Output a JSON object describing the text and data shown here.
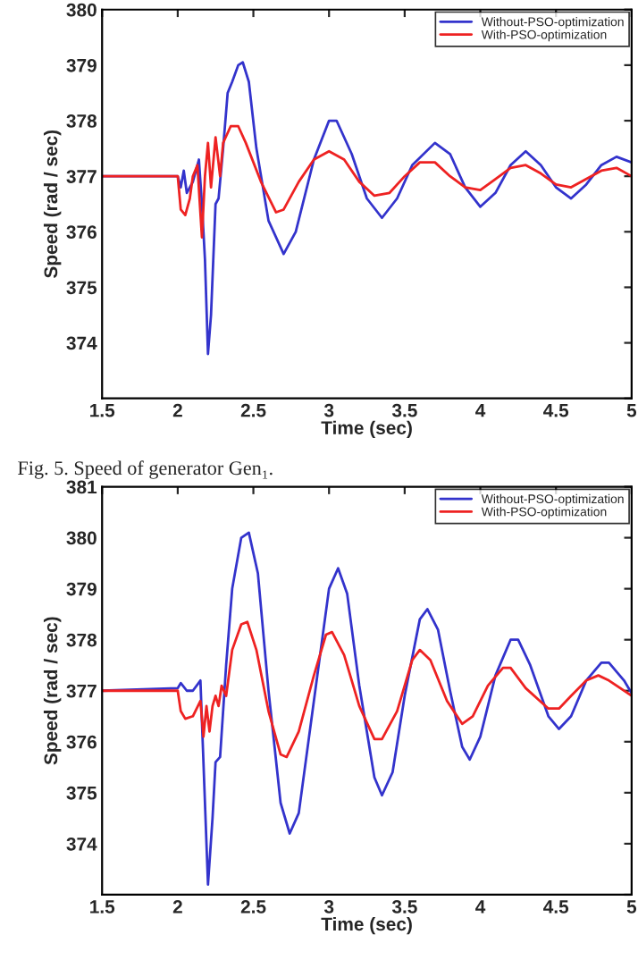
{
  "chart_data": [
    {
      "type": "line",
      "xlabel": "Time (sec)",
      "ylabel": "Speed (rad / sec)",
      "xlim": [
        1.5,
        5
      ],
      "xticks": [
        1.5,
        2,
        2.5,
        3,
        3.5,
        4,
        4.5,
        5
      ],
      "ylim": [
        373,
        380
      ],
      "yticks": [
        {
          "value": 373,
          "label": null
        },
        374,
        375,
        376,
        377,
        378,
        379,
        380
      ],
      "legend": "top right",
      "grid": false,
      "annotations": [
        "Fig. 5. Speed of generator Gen₁."
      ],
      "series": [
        {
          "name": "Without-PSO-optimization",
          "color": "#3333cc",
          "x": [
            1.5,
            2.0,
            2.02,
            2.04,
            2.06,
            2.1,
            2.14,
            2.16,
            2.18,
            2.2,
            2.22,
            2.25,
            2.27,
            2.3,
            2.33,
            2.36,
            2.4,
            2.43,
            2.47,
            2.52,
            2.6,
            2.7,
            2.78,
            2.9,
            3.0,
            3.05,
            3.15,
            3.25,
            3.35,
            3.45,
            3.55,
            3.7,
            3.8,
            3.9,
            4.0,
            4.1,
            4.2,
            4.3,
            4.4,
            4.5,
            4.6,
            4.7,
            4.8,
            4.9,
            5.0
          ],
          "values": [
            377,
            377,
            376.8,
            377.1,
            376.7,
            376.9,
            377.3,
            376.5,
            375.5,
            373.8,
            374.5,
            376.5,
            376.6,
            377.5,
            378.5,
            378.7,
            379.0,
            379.05,
            378.7,
            377.5,
            376.2,
            375.6,
            376.0,
            377.3,
            378.0,
            378.0,
            377.4,
            376.6,
            376.25,
            376.6,
            377.2,
            377.6,
            377.4,
            376.8,
            376.45,
            376.7,
            377.2,
            377.45,
            377.2,
            376.8,
            376.6,
            376.85,
            377.2,
            377.35,
            377.25
          ]
        },
        {
          "name": "With-PSO-optimization",
          "color": "#ee2222",
          "x": [
            1.5,
            2.0,
            2.02,
            2.05,
            2.08,
            2.1,
            2.13,
            2.16,
            2.18,
            2.2,
            2.22,
            2.25,
            2.28,
            2.3,
            2.35,
            2.4,
            2.45,
            2.55,
            2.65,
            2.7,
            2.8,
            2.9,
            3.0,
            3.1,
            3.2,
            3.3,
            3.4,
            3.5,
            3.6,
            3.7,
            3.8,
            3.9,
            4.0,
            4.1,
            4.2,
            4.3,
            4.4,
            4.5,
            4.6,
            4.7,
            4.8,
            4.9,
            5.0
          ],
          "values": [
            377,
            377,
            376.4,
            376.3,
            376.6,
            377.0,
            377.2,
            375.9,
            377.0,
            377.6,
            376.8,
            377.7,
            377.0,
            377.6,
            377.9,
            377.9,
            377.6,
            376.9,
            376.35,
            376.4,
            376.9,
            377.3,
            377.45,
            377.3,
            376.9,
            376.65,
            376.7,
            377.0,
            377.25,
            377.25,
            377.0,
            376.8,
            376.75,
            376.95,
            377.15,
            377.2,
            377.05,
            376.85,
            376.8,
            376.95,
            377.1,
            377.15,
            377.0
          ]
        }
      ]
    },
    {
      "type": "line",
      "xlabel": "Time (sec)",
      "ylabel": "Speed (rad / sec)",
      "xlim": [
        1.5,
        5
      ],
      "xticks": [
        1.5,
        2,
        2.5,
        3,
        3.5,
        4,
        4.5,
        5
      ],
      "ylim": [
        373,
        381
      ],
      "yticks": [
        {
          "value": 373,
          "label": null
        },
        374,
        375,
        376,
        377,
        378,
        379,
        380,
        381
      ],
      "legend": "top right",
      "grid": false,
      "series": [
        {
          "name": "Without-PSO-optimization",
          "color": "#3333cc",
          "x": [
            1.5,
            2.0,
            2.02,
            2.06,
            2.1,
            2.15,
            2.17,
            2.2,
            2.23,
            2.25,
            2.28,
            2.32,
            2.36,
            2.42,
            2.47,
            2.53,
            2.6,
            2.68,
            2.74,
            2.8,
            2.9,
            3.0,
            3.06,
            3.12,
            3.2,
            3.3,
            3.35,
            3.42,
            3.5,
            3.6,
            3.65,
            3.72,
            3.8,
            3.88,
            3.93,
            4.0,
            4.1,
            4.2,
            4.25,
            4.33,
            4.45,
            4.52,
            4.6,
            4.7,
            4.8,
            4.85,
            4.95,
            5.0
          ],
          "values": [
            377,
            377.05,
            377.15,
            377.0,
            377.0,
            377.2,
            375.6,
            373.2,
            374.5,
            375.6,
            375.7,
            377.5,
            379.0,
            380.0,
            380.1,
            379.3,
            377.0,
            374.8,
            374.2,
            374.6,
            376.8,
            379.0,
            379.4,
            378.9,
            377.1,
            375.3,
            374.95,
            375.4,
            376.9,
            378.4,
            378.6,
            378.2,
            377.0,
            375.9,
            375.65,
            376.1,
            377.3,
            378.0,
            378.0,
            377.5,
            376.5,
            376.25,
            376.5,
            377.2,
            377.55,
            377.55,
            377.2,
            376.95
          ]
        },
        {
          "name": "With-PSO-optimization",
          "color": "#ee2222",
          "x": [
            1.5,
            2.0,
            2.02,
            2.05,
            2.1,
            2.15,
            2.17,
            2.19,
            2.21,
            2.23,
            2.25,
            2.27,
            2.29,
            2.32,
            2.36,
            2.42,
            2.46,
            2.52,
            2.6,
            2.68,
            2.72,
            2.8,
            2.9,
            2.98,
            3.02,
            3.1,
            3.2,
            3.3,
            3.35,
            3.45,
            3.55,
            3.6,
            3.67,
            3.78,
            3.88,
            3.95,
            4.05,
            4.15,
            4.2,
            4.3,
            4.45,
            4.52,
            4.6,
            4.7,
            4.78,
            4.85,
            5.0
          ],
          "values": [
            377,
            377.0,
            376.6,
            376.45,
            376.5,
            376.8,
            376.1,
            376.7,
            376.2,
            376.7,
            376.9,
            376.7,
            377.1,
            376.9,
            377.8,
            378.3,
            378.35,
            377.8,
            376.6,
            375.75,
            375.7,
            376.2,
            377.3,
            378.1,
            378.15,
            377.7,
            376.7,
            376.05,
            376.05,
            376.6,
            377.6,
            377.8,
            377.6,
            376.8,
            376.35,
            376.5,
            377.1,
            377.45,
            377.45,
            377.05,
            376.65,
            376.65,
            376.9,
            377.2,
            377.3,
            377.2,
            376.9
          ]
        }
      ]
    }
  ]
}
